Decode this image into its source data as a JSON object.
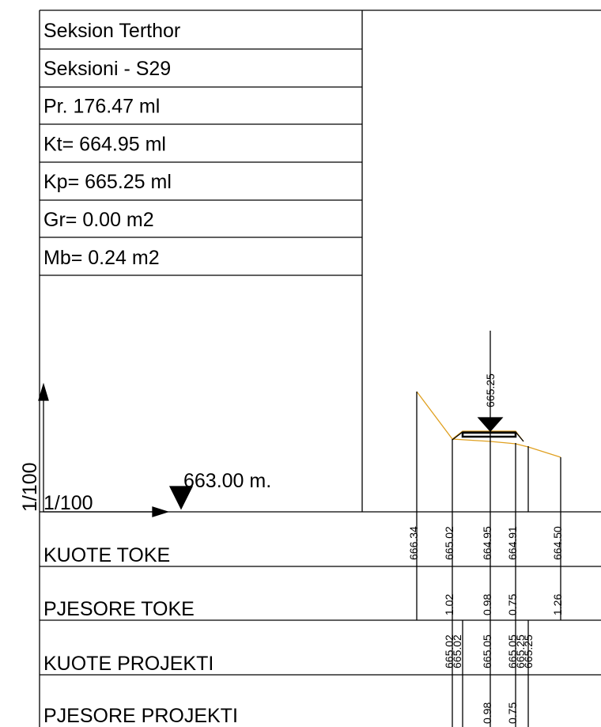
{
  "header": {
    "rows": [
      "Seksion Terthor",
      "Seksioni -  S29",
      "Pr. 176.47 ml",
      "Kt= 664.95 ml",
      "Kp= 665.25 ml",
      "Gr= 0.00 m2",
      "Mb= 0.24 m2"
    ]
  },
  "scale": {
    "vertical": "1/100",
    "horizontal": "1/100",
    "datum": "663.00 m."
  },
  "profile": {
    "axis_label": "665.25"
  },
  "table": {
    "rows": [
      {
        "label": "KUOTE TOKE",
        "values": [
          "666.34",
          "665.02",
          "664.95",
          "664.91",
          "664.50"
        ]
      },
      {
        "label": "PJESORE TOKE",
        "values": [
          "1.02",
          "0.98",
          "0.75",
          "1.26"
        ]
      },
      {
        "label": "KUOTE PROJEKTI",
        "values": [
          "665.02",
          "665.02",
          "665.05",
          "665.05",
          "665.25",
          "665.25"
        ]
      },
      {
        "label": "PJESORE PROJEKTI",
        "values": [
          "0.98",
          "0.75"
        ]
      }
    ]
  }
}
